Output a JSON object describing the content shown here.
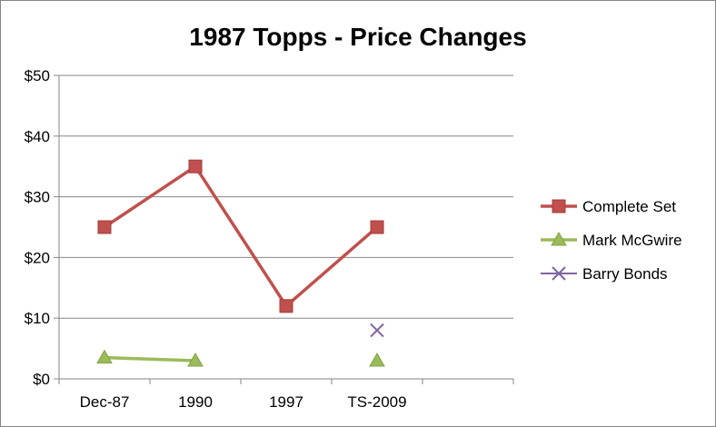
{
  "chart_data": {
    "type": "line",
    "title": "1987 Topps - Price Changes",
    "xlabel": "",
    "ylabel": "",
    "categories": [
      "Dec-87",
      "1990",
      "1997",
      "TS-2009",
      ""
    ],
    "ylim": [
      0,
      50
    ],
    "yticks": [
      0,
      10,
      20,
      30,
      40,
      50
    ],
    "ytick_labels": [
      "$0",
      "$10",
      "$20",
      "$30",
      "$40",
      "$50"
    ],
    "grid": true,
    "legend_position": "right",
    "series": [
      {
        "name": "Complete Set",
        "values": [
          25,
          35,
          12,
          25,
          null
        ],
        "color": "#c0504d",
        "marker": "square",
        "connect": [
          [
            0,
            1
          ],
          [
            1,
            2
          ],
          [
            2,
            3
          ]
        ]
      },
      {
        "name": "Mark McGwire",
        "values": [
          3.5,
          3,
          null,
          3,
          null
        ],
        "color": "#9bbb59",
        "marker": "triangle",
        "connect": [
          [
            0,
            1
          ]
        ]
      },
      {
        "name": "Barry Bonds",
        "values": [
          null,
          null,
          null,
          8,
          null
        ],
        "color": "#8064a2",
        "marker": "x",
        "connect": []
      }
    ]
  }
}
